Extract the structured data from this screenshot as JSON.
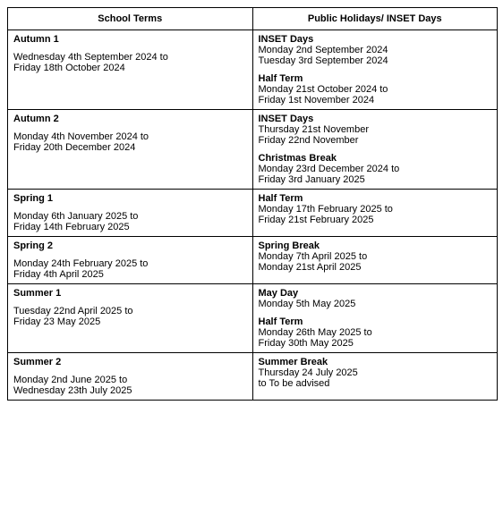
{
  "headers": [
    "School Terms",
    "Public Holidays/ INSET Days"
  ],
  "rows": [
    {
      "left": {
        "title": "Autumn 1",
        "lines": [
          "Wednesday 4th  September 2024 to",
          "Friday 18th October 2024"
        ]
      },
      "right": [
        {
          "title": "INSET Days",
          "lines": [
            "Monday 2nd September 2024",
            "Tuesday 3rd September 2024"
          ]
        },
        {
          "title": "Half Term",
          "lines": [
            "Monday 21st October 2024 to",
            "Friday 1st November 2024"
          ]
        }
      ]
    },
    {
      "left": {
        "title": "Autumn 2",
        "lines": [
          "Monday 4th November 2024 to",
          "Friday 20th December 2024"
        ]
      },
      "right": [
        {
          "title": "INSET Days",
          "lines": [
            "Thursday 21st November",
            "Friday 22nd November"
          ]
        },
        {
          "title": "Christmas Break",
          "lines": [
            "Monday 23rd December 2024 to",
            "Friday 3rd January 2025"
          ]
        }
      ]
    },
    {
      "left": {
        "title": "Spring 1",
        "lines": [
          "Monday 6th January 2025 to",
          "Friday 14th February 2025"
        ]
      },
      "right": [
        {
          "title": "Half Term",
          "lines": [
            "Monday 17th February 2025 to",
            "Friday 21st February 2025"
          ]
        }
      ]
    },
    {
      "left": {
        "title": "Spring 2",
        "lines": [
          "Monday 24th February 2025 to",
          "Friday 4th April 2025"
        ]
      },
      "right": [
        {
          "title": "Spring Break",
          "lines": [
            "Monday 7th April 2025 to",
            "Monday 21st April 2025"
          ]
        }
      ]
    },
    {
      "left": {
        "title": "Summer 1",
        "lines": [
          "Tuesday 22nd April 2025 to",
          "Friday 23 May 2025"
        ]
      },
      "right": [
        {
          "title": "May Day",
          "lines": [
            "Monday 5th May 2025"
          ]
        },
        {
          "title": "Half Term",
          "lines": [
            "Monday 26th May 2025 to",
            "Friday 30th May 2025"
          ]
        }
      ]
    },
    {
      "left": {
        "title": "Summer 2",
        "lines": [
          "Monday 2nd June 2025 to",
          "Wednesday 23th July 2025"
        ]
      },
      "right": [
        {
          "title": "Summer Break",
          "lines": [
            "Thursday 24 July 2025",
            "to To be advised"
          ]
        }
      ]
    }
  ]
}
